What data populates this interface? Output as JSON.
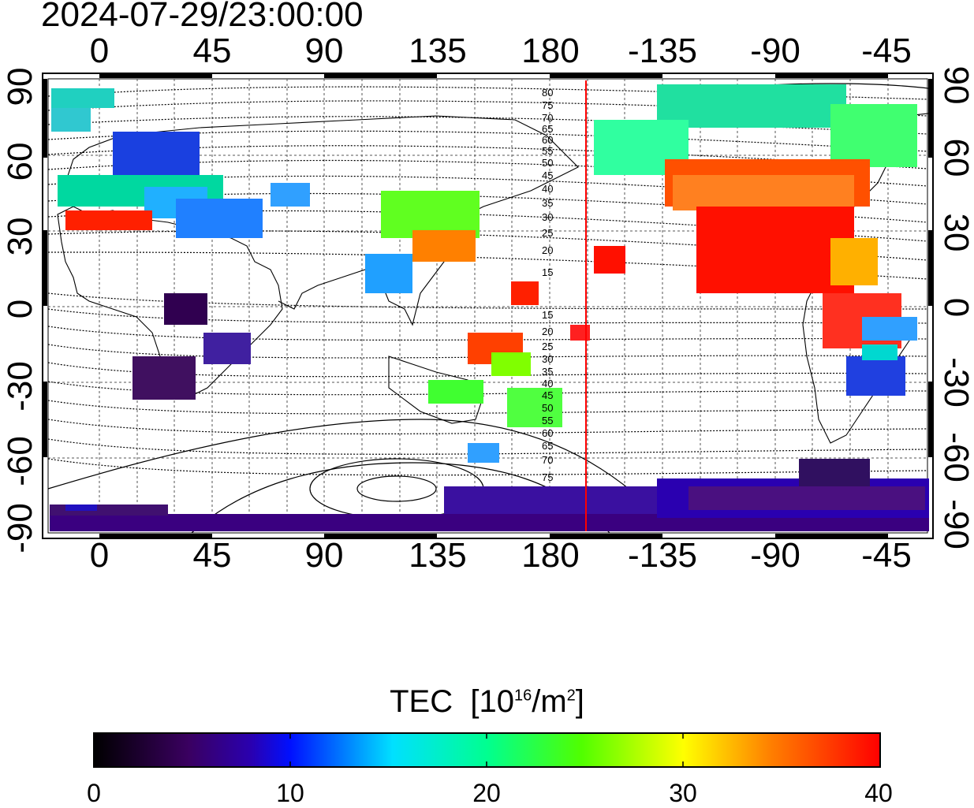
{
  "title": "2024-07-29/23:00:00",
  "x_axis": {
    "ticks": [
      "0",
      "45",
      "90",
      "135",
      "180",
      "-135",
      "-90",
      "-45"
    ]
  },
  "y_axis": {
    "ticks": [
      "90",
      "60",
      "30",
      "0",
      "-30",
      "-60",
      "-90"
    ]
  },
  "colorbar": {
    "title_main": "TEC",
    "title_unit_open": "[10",
    "title_unit_exp1": "16",
    "title_unit_mid": "/m",
    "title_unit_exp2": "2",
    "title_unit_close": "]",
    "ticks": [
      "0",
      "10",
      "20",
      "30",
      "40"
    ],
    "min": 0,
    "max": 40
  },
  "contour_labels_north": [
    "80",
    "75",
    "70",
    "65",
    "60",
    "55",
    "50",
    "45",
    "40",
    "35",
    "30",
    "25",
    "20",
    "15"
  ],
  "contour_labels_south": [
    "15",
    "20",
    "25",
    "30",
    "35",
    "40",
    "45",
    "50",
    "55",
    "60",
    "65",
    "70",
    "75"
  ],
  "colors": {
    "terminator": "#ff0000",
    "grid": "#555555",
    "frame": "#000000"
  }
}
